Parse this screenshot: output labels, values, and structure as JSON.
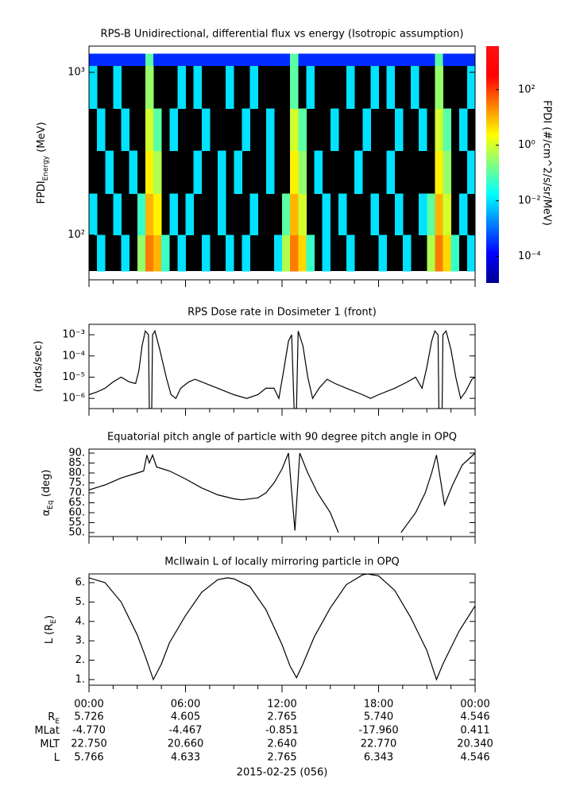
{
  "chart_data": [
    {
      "type": "spectrogram",
      "title": "RPS-B  Unidirectional, differential flux vs energy (Isotropic assumption)",
      "ylabel": "FPDI",
      "ylabel_sub": "Energy",
      "ylabel_end": " (MeV)",
      "xlim": [
        0,
        24
      ],
      "xticks": [
        0,
        6,
        12,
        18,
        24
      ],
      "xminor_step": 1.5,
      "ylim": [
        53,
        1450
      ],
      "ylog": true,
      "yticks": [
        {
          "value": 100,
          "label": "10²"
        },
        {
          "value": 1000,
          "label": "10³"
        }
      ],
      "xbins": [
        0,
        0.5,
        1,
        1.5,
        2,
        2.5,
        3,
        3.5,
        4,
        4.5,
        5,
        5.5,
        6,
        6.5,
        7,
        7.5,
        8,
        8.5,
        9,
        9.5,
        10,
        10.5,
        11,
        11.5,
        12,
        12.5,
        13,
        13.5,
        14,
        14.5,
        15,
        15.5,
        16,
        16.5,
        17,
        17.5,
        18,
        18.5,
        19,
        19.5,
        20,
        20.5,
        21,
        21.5,
        22,
        22.5,
        23,
        23.5,
        24
      ],
      "ybins": [
        60,
        100,
        180,
        330,
        600,
        1100,
        1300
      ],
      "z": [
        [
          null,
          0.01,
          null,
          null,
          0.01,
          null,
          0.3,
          30,
          10,
          0.05,
          null,
          0.01,
          null,
          null,
          0.01,
          null,
          null,
          0.01,
          null,
          0.01,
          null,
          null,
          null,
          0.01,
          0.5,
          30,
          5,
          0.05,
          null,
          0.01,
          null,
          null,
          0.01,
          null,
          null,
          null,
          0.01,
          null,
          null,
          0.01,
          null,
          null,
          0.5,
          30,
          5,
          0.05,
          null,
          0.01
        ],
        [
          0.01,
          null,
          null,
          0.01,
          null,
          null,
          0.05,
          10,
          3,
          null,
          0.01,
          null,
          0.01,
          null,
          null,
          null,
          0.01,
          null,
          null,
          null,
          0.01,
          null,
          null,
          null,
          0.1,
          10,
          1,
          null,
          null,
          0.01,
          null,
          0.01,
          null,
          null,
          null,
          0.01,
          null,
          null,
          0.01,
          null,
          null,
          0.01,
          0.1,
          10,
          1,
          null,
          0.01,
          null
        ],
        [
          null,
          null,
          0.01,
          null,
          null,
          0.01,
          null,
          3,
          0.5,
          null,
          null,
          null,
          null,
          0.01,
          null,
          null,
          0.01,
          null,
          0.01,
          null,
          null,
          null,
          0.01,
          null,
          null,
          3,
          0.3,
          null,
          0.01,
          null,
          null,
          null,
          null,
          0.01,
          null,
          null,
          null,
          0.01,
          null,
          null,
          null,
          null,
          null,
          3,
          0.3,
          null,
          null,
          0.01
        ],
        [
          null,
          0.01,
          null,
          null,
          0.01,
          null,
          null,
          1,
          0.1,
          null,
          0.01,
          null,
          null,
          null,
          0.01,
          null,
          null,
          null,
          null,
          0.01,
          null,
          null,
          0.01,
          null,
          null,
          1,
          0.1,
          null,
          null,
          null,
          0.01,
          null,
          null,
          null,
          0.01,
          null,
          null,
          null,
          0.01,
          null,
          null,
          0.01,
          null,
          1,
          0.1,
          null,
          0.01,
          null
        ],
        [
          0.01,
          null,
          null,
          0.01,
          null,
          null,
          null,
          0.3,
          null,
          null,
          null,
          0.01,
          null,
          0.01,
          null,
          null,
          null,
          0.01,
          null,
          null,
          0.01,
          null,
          null,
          null,
          null,
          0.1,
          null,
          0.01,
          null,
          null,
          null,
          null,
          0.01,
          null,
          null,
          0.01,
          null,
          0.01,
          null,
          null,
          0.01,
          null,
          null,
          0.3,
          null,
          null,
          null,
          0.01
        ],
        [
          0.0003,
          0.0003,
          0.0003,
          0.0003,
          0.0003,
          0.0003,
          0.0003,
          0.1,
          0.0003,
          0.0003,
          0.0003,
          0.0003,
          0.0003,
          0.0003,
          0.0003,
          0.0003,
          0.0003,
          0.0003,
          0.0003,
          0.0003,
          0.0003,
          0.0003,
          0.0003,
          0.0003,
          0.0003,
          0.1,
          0.0003,
          0.0003,
          0.0003,
          0.0003,
          0.0003,
          0.0003,
          0.0003,
          0.0003,
          0.0003,
          0.0003,
          0.0003,
          0.0003,
          0.0003,
          0.0003,
          0.0003,
          0.0003,
          0.0003,
          0.1,
          0.0003,
          0.0003,
          0.0003,
          0.0003
        ]
      ],
      "zlim": [
        1.1e-05,
        3700
      ],
      "zlog": true,
      "zticks": [
        {
          "value": 0.0001,
          "label": "10⁻⁴"
        },
        {
          "value": 0.01,
          "label": "10⁻²"
        },
        {
          "value": 1,
          "label": "10⁰"
        },
        {
          "value": 100,
          "label": "10²"
        }
      ],
      "zlabel": "FPDI (#/cm^2/s/sr/MeV)",
      "colormap": "jet"
    },
    {
      "type": "line",
      "title": "RPS  Dose rate in Dosimeter 1 (front)",
      "ylabel": "(rads/sec)",
      "xlim": [
        0,
        24
      ],
      "xticks": [
        0,
        6,
        12,
        18,
        24
      ],
      "xminor_step": 1.5,
      "ylim": [
        3.3e-07,
        0.0031
      ],
      "ylog": true,
      "yticks": [
        {
          "value": 0.001,
          "label": "10⁻³"
        },
        {
          "value": 0.0001,
          "label": "10⁻⁴"
        },
        {
          "value": 1e-05,
          "label": "10⁻⁵"
        },
        {
          "value": 1e-06,
          "label": "10⁻⁶"
        }
      ],
      "color": "#000000",
      "x": [
        0,
        0.5,
        1,
        1.5,
        2,
        2.5,
        2.9,
        3.1,
        3.3,
        3.5,
        3.7,
        3.75,
        3.9,
        3.95,
        4.1,
        4.4,
        4.8,
        5.1,
        5.4,
        5.7,
        6.2,
        6.6,
        7,
        8,
        9,
        9.8,
        10.5,
        11,
        11.5,
        11.8,
        12.1,
        12.4,
        12.6,
        12.75,
        12.9,
        13,
        13.3,
        13.6,
        13.9,
        14.3,
        14.8,
        15.3,
        16,
        17,
        17.5,
        18,
        19,
        19.8,
        20.3,
        20.7,
        21,
        21.3,
        21.5,
        21.7,
        21.75,
        21.95,
        22,
        22.2,
        22.5,
        22.8,
        23.1,
        23.4,
        23.8,
        24
      ],
      "values": [
        1.5e-06,
        2e-06,
        3e-06,
        6e-06,
        1e-05,
        6e-06,
        5e-06,
        2e-05,
        0.0003,
        0.0015,
        0.001,
        3.3e-07,
        3.3e-07,
        0.001,
        0.0015,
        0.0002,
        1e-05,
        1.5e-06,
        1e-06,
        3e-06,
        6e-06,
        8e-06,
        6e-06,
        3e-06,
        1.5e-06,
        1e-06,
        1.5e-06,
        3e-06,
        3e-06,
        1e-06,
        2e-05,
        0.0005,
        0.001,
        3.3e-07,
        3.3e-07,
        0.0015,
        0.0003,
        1e-05,
        1e-06,
        3e-06,
        8e-06,
        5e-06,
        3e-06,
        1.5e-06,
        1e-06,
        1.5e-06,
        3e-06,
        6e-06,
        1e-05,
        3e-06,
        3e-05,
        0.0005,
        0.0015,
        0.001,
        3.3e-07,
        3.3e-07,
        0.001,
        0.0015,
        0.0002,
        1e-05,
        1e-06,
        2e-06,
        8e-06,
        1e-05
      ]
    },
    {
      "type": "line",
      "title": "Equatorial pitch angle of particle with 90 degree pitch angle in OPQ",
      "ylabel": "α",
      "ylabel_sub": "Eq",
      "ylabel_end": " (deg)",
      "xlim": [
        0,
        24
      ],
      "xticks": [
        0,
        6,
        12,
        18,
        24
      ],
      "xminor_step": 1.5,
      "ylim": [
        48,
        92
      ],
      "yticks": [
        {
          "value": 50,
          "label": "50."
        },
        {
          "value": 55,
          "label": "55."
        },
        {
          "value": 60,
          "label": "60."
        },
        {
          "value": 65,
          "label": "65."
        },
        {
          "value": 70,
          "label": "70."
        },
        {
          "value": 75,
          "label": "75."
        },
        {
          "value": 80,
          "label": "80."
        },
        {
          "value": 85,
          "label": "85."
        },
        {
          "value": 90,
          "label": "90."
        }
      ],
      "color": "#000000",
      "x": [
        0,
        1,
        2,
        3,
        3.4,
        3.6,
        3.75,
        3.95,
        4.2,
        5,
        6,
        7,
        8,
        9,
        9.5,
        10.5,
        11,
        11.5,
        12,
        12.4,
        12.8,
        13.1,
        13.6,
        14.2,
        15,
        15.5,
        15.7,
        19.2,
        19.4,
        20.3,
        20.9,
        21.3,
        21.6,
        22.1,
        22.6,
        23.2,
        24
      ],
      "values": [
        71.5,
        74,
        77.5,
        80,
        81,
        89,
        85,
        89,
        83,
        81,
        77,
        72.5,
        69,
        67,
        66.5,
        67.5,
        70,
        75,
        82,
        90,
        51,
        90,
        80,
        70,
        60,
        50,
        null,
        null,
        50,
        60,
        70,
        80,
        89,
        64,
        74,
        84,
        90
      ]
    },
    {
      "type": "line",
      "title": "McIlwain L of locally mirroring particle in OPQ",
      "ylabel": "L (R",
      "ylabel_sub": "E",
      "ylabel_end": ")",
      "xlim": [
        0,
        24
      ],
      "xticks": [
        {
          "value": 0,
          "label": "00:00"
        },
        {
          "value": 6,
          "label": "06:00"
        },
        {
          "value": 12,
          "label": "12:00"
        },
        {
          "value": 18,
          "label": "18:00"
        },
        {
          "value": 24,
          "label": "00:00"
        }
      ],
      "xminor_step": 1.5,
      "ylim": [
        0.71,
        6.45
      ],
      "yticks": [
        {
          "value": 1,
          "label": "1."
        },
        {
          "value": 2,
          "label": "2."
        },
        {
          "value": 3,
          "label": "3."
        },
        {
          "value": 4,
          "label": "4."
        },
        {
          "value": 5,
          "label": "5."
        },
        {
          "value": 6,
          "label": "6."
        }
      ],
      "color": "#000000",
      "x": [
        0,
        1,
        2,
        3,
        3.5,
        4,
        4.5,
        5,
        6,
        7,
        8,
        8.6,
        9,
        10,
        11,
        12,
        12.5,
        12.9,
        13.3,
        14,
        15,
        16,
        17,
        17.3,
        18,
        19,
        20,
        21,
        21.6,
        22,
        23,
        24
      ],
      "values": [
        6.25,
        6,
        5,
        3.3,
        2.2,
        1,
        1.8,
        2.9,
        4.3,
        5.5,
        6.15,
        6.25,
        6.2,
        5.8,
        4.6,
        2.8,
        1.7,
        1.1,
        1.8,
        3.2,
        4.7,
        5.9,
        6.4,
        6.45,
        6.35,
        5.6,
        4.2,
        2.5,
        1,
        1.8,
        3.5,
        4.8
      ]
    }
  ],
  "ephemeris": {
    "rows": [
      {
        "label": "R",
        "sub": "E",
        "values": [
          "5.726",
          "4.605",
          "2.765",
          "5.740",
          "4.546"
        ]
      },
      {
        "label": "MLat",
        "values": [
          "-4.770",
          "-4.467",
          "-0.851",
          "-17.960",
          "0.411"
        ]
      },
      {
        "label": "MLT",
        "values": [
          "22.750",
          "20.660",
          "2.640",
          "22.770",
          "20.340"
        ]
      },
      {
        "label": "L",
        "values": [
          "5.766",
          "4.633",
          "2.765",
          "6.343",
          "4.546"
        ]
      }
    ],
    "date": "2015-02-25 (056)"
  }
}
